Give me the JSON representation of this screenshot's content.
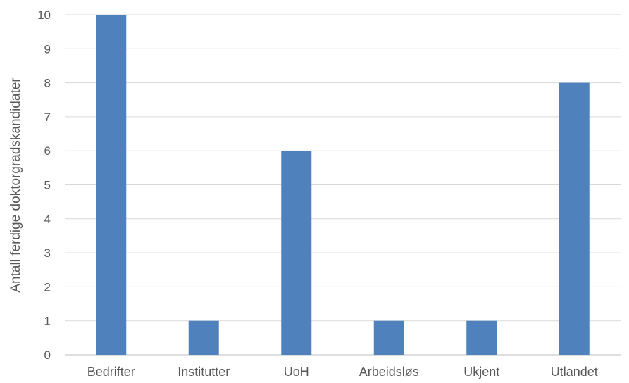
{
  "chart_data": {
    "type": "bar",
    "categories": [
      "Bedrifter",
      "Institutter",
      "UoH",
      "Arbeidsløs",
      "Ukjent",
      "Utlandet"
    ],
    "values": [
      10,
      1,
      6,
      1,
      1,
      8
    ],
    "title": "",
    "xlabel": "",
    "ylabel": "Antall ferdige doktorgradskandidater",
    "ylim": [
      0,
      10
    ],
    "yticks": [
      0,
      1,
      2,
      3,
      4,
      5,
      6,
      7,
      8,
      9,
      10
    ],
    "grid": true,
    "legend": "none",
    "bar_color": "#4f81bd"
  }
}
